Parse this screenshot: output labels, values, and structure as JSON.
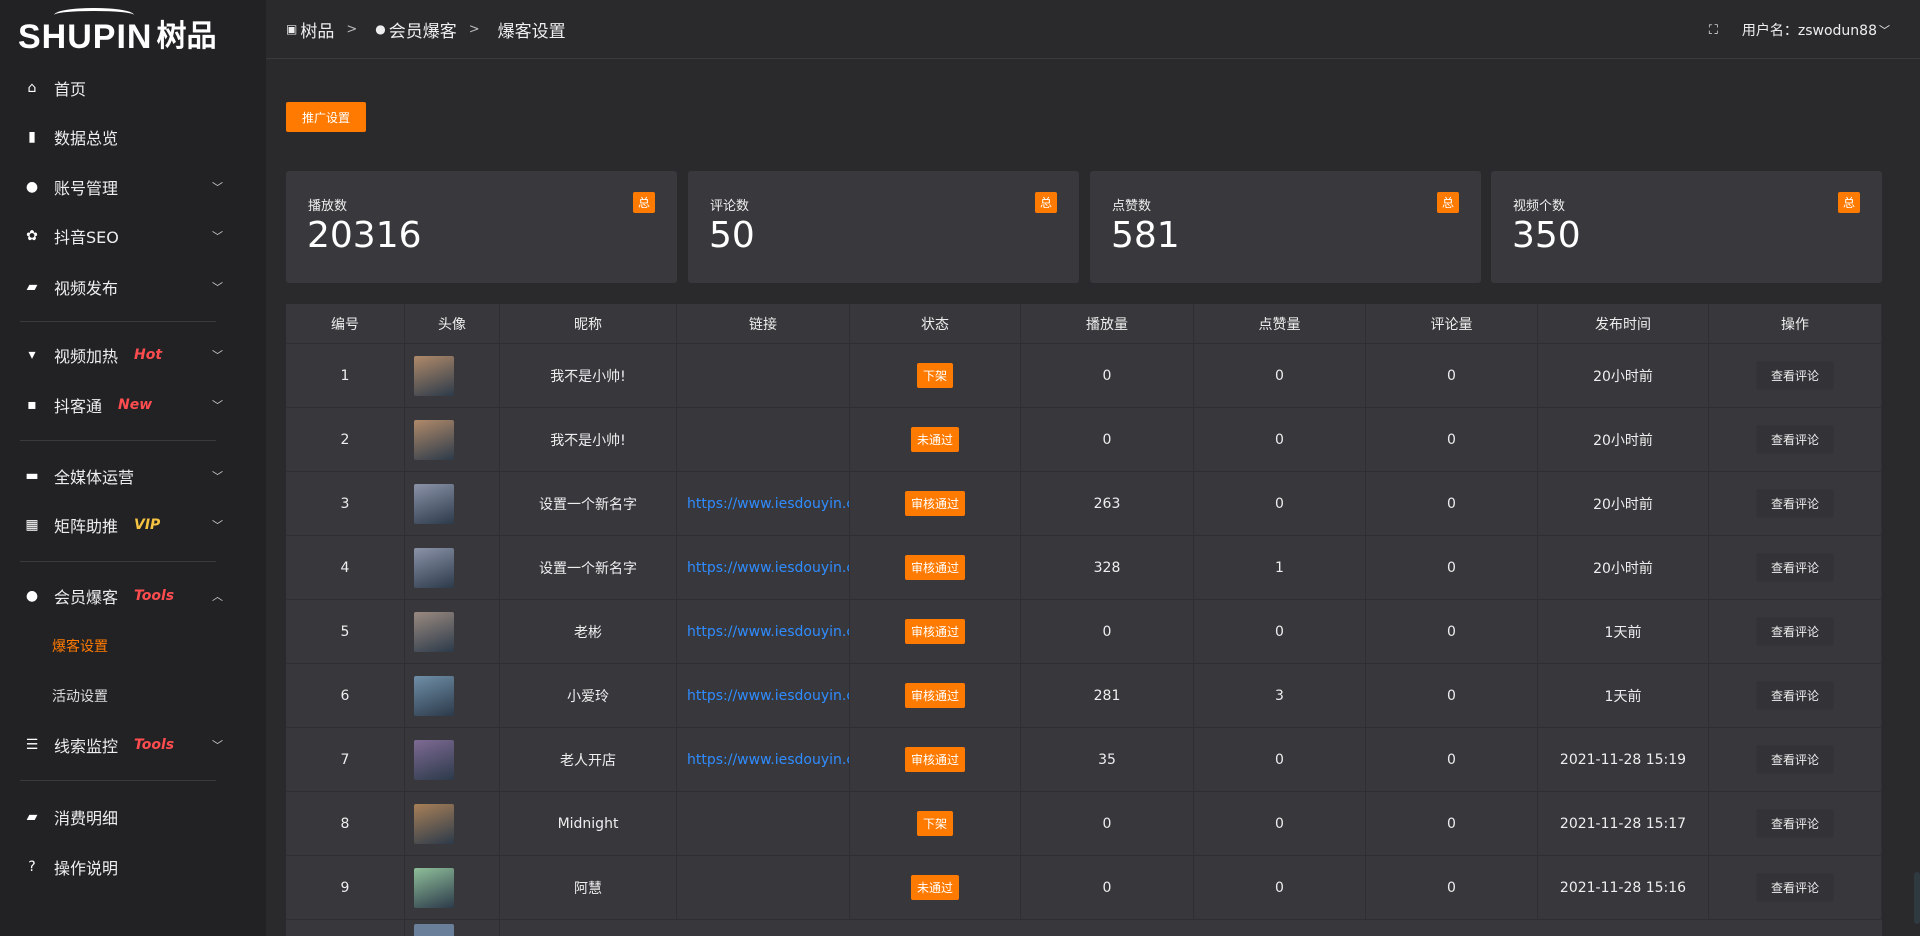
{
  "logo": {
    "latin": "SHUPIN",
    "cn": "树品"
  },
  "sidebar": {
    "items": [
      {
        "label": "首页",
        "icon": "home-icon",
        "glyph": "⌂"
      },
      {
        "label": "数据总览",
        "icon": "bar-chart-icon",
        "glyph": "▮"
      },
      {
        "label": "账号管理",
        "icon": "user-icon",
        "glyph": "●",
        "chevron": "﹀"
      },
      {
        "label": "抖音SEO",
        "icon": "gear-icon",
        "glyph": "✿",
        "chevron": "﹀"
      },
      {
        "label": "视频发布",
        "icon": "camera-icon",
        "glyph": "▰",
        "chevron": "﹀"
      },
      {
        "label": "视频加热",
        "icon": "signboard-icon",
        "glyph": "▾",
        "tag": "Hot",
        "tag_color": "#ff4d4f",
        "chevron": "﹀"
      },
      {
        "label": "抖客通",
        "icon": "chat-icon",
        "glyph": "▪",
        "tag": "New",
        "tag_color": "#ff4d4f",
        "chevron": "﹀"
      },
      {
        "label": "全媒体运营",
        "icon": "monitor-icon",
        "glyph": "▬",
        "chevron": "﹀"
      },
      {
        "label": "矩阵助推",
        "icon": "grid-icon",
        "glyph": "▦",
        "tag": "VIP",
        "tag_color": "#f5c342",
        "chevron": "﹀"
      },
      {
        "label": "会员爆客",
        "icon": "member-icon",
        "glyph": "●",
        "tag": "Tools",
        "tag_color": "#ff4d4f",
        "chevron": "︿"
      },
      {
        "label": "线索监控",
        "icon": "sliders-icon",
        "glyph": "☰",
        "tag": "Tools",
        "tag_color": "#ff4d4f",
        "chevron": "﹀"
      },
      {
        "label": "消费明细",
        "icon": "wallet-icon",
        "glyph": "▰"
      },
      {
        "label": "操作说明",
        "icon": "help-icon",
        "glyph": "?"
      }
    ],
    "sub_items": [
      {
        "label": "爆客设置",
        "active": true
      },
      {
        "label": "活动设置"
      }
    ],
    "active_color": "#ff7a00"
  },
  "header": {
    "breadcrumb": [
      {
        "label": "树品",
        "icon": "image-icon"
      },
      {
        "label": "会员爆客",
        "icon": "user-icon"
      },
      {
        "label": "爆客设置"
      }
    ],
    "separator": ">",
    "user_label": "用户名：zswodun88",
    "user_chevron": "﹀"
  },
  "toolbar": {
    "promo_label": "推广设置"
  },
  "stats": [
    {
      "label": "播放数",
      "value": "20316",
      "badge": "总"
    },
    {
      "label": "评论数",
      "value": "50",
      "badge": "总"
    },
    {
      "label": "点赞数",
      "value": "581",
      "badge": "总"
    },
    {
      "label": "视频个数",
      "value": "350",
      "badge": "总"
    }
  ],
  "table": {
    "columns": [
      "编号",
      "头像",
      "昵称",
      "链接",
      "状态",
      "播放量",
      "点赞量",
      "评论量",
      "发布时间",
      "操作"
    ],
    "action_label": "查看评论",
    "rows": [
      {
        "id": "1",
        "avatar": "#b08a6a",
        "nickname": "我不是小帅!",
        "link": "",
        "status": "下架",
        "plays": "0",
        "likes": "0",
        "comments": "0",
        "time": "20小时前"
      },
      {
        "id": "2",
        "avatar": "#b08a6a",
        "nickname": "我不是小帅!",
        "link": "",
        "status": "未通过",
        "plays": "0",
        "likes": "0",
        "comments": "0",
        "time": "20小时前"
      },
      {
        "id": "3",
        "avatar": "#8b93a8",
        "nickname": "设置一个新名字",
        "link": "https://www.iesdouyin.c",
        "status": "审核通过",
        "plays": "263",
        "likes": "0",
        "comments": "0",
        "time": "20小时前"
      },
      {
        "id": "4",
        "avatar": "#8b93a8",
        "nickname": "设置一个新名字",
        "link": "https://www.iesdouyin.c",
        "status": "审核通过",
        "plays": "328",
        "likes": "1",
        "comments": "0",
        "time": "20小时前"
      },
      {
        "id": "5",
        "avatar": "#9a8a80",
        "nickname": "老彬",
        "link": "https://www.iesdouyin.c",
        "status": "审核通过",
        "plays": "0",
        "likes": "0",
        "comments": "0",
        "time": "1天前"
      },
      {
        "id": "6",
        "avatar": "#6f8fa8",
        "nickname": "小爱玲",
        "link": "https://www.iesdouyin.c",
        "status": "审核通过",
        "plays": "281",
        "likes": "3",
        "comments": "0",
        "time": "1天前"
      },
      {
        "id": "7",
        "avatar": "#7e6a94",
        "nickname": "老人开店",
        "link": "https://www.iesdouyin.c",
        "status": "审核通过",
        "plays": "35",
        "likes": "0",
        "comments": "0",
        "time": "2021-11-28 15:19"
      },
      {
        "id": "8",
        "avatar": "#a88058",
        "nickname": "Midnight",
        "link": "",
        "status": "下架",
        "plays": "0",
        "likes": "0",
        "comments": "0",
        "time": "2021-11-28 15:17"
      },
      {
        "id": "9",
        "avatar": "#8fbf9a",
        "nickname": "阿慧",
        "link": "",
        "status": "未通过",
        "plays": "0",
        "likes": "0",
        "comments": "0",
        "time": "2021-11-28 15:16"
      }
    ]
  }
}
